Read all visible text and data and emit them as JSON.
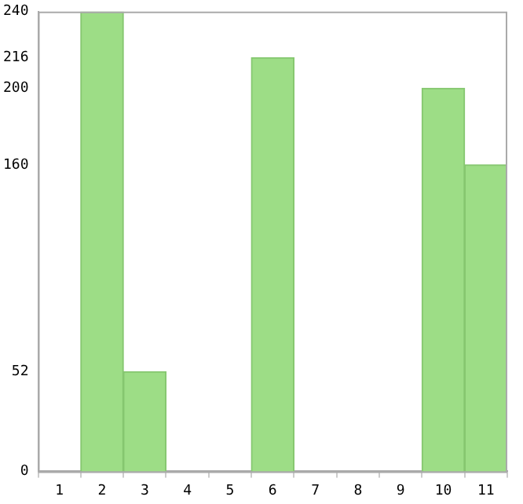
{
  "chart_data": {
    "type": "bar",
    "categories": [
      "1",
      "2",
      "3",
      "4",
      "5",
      "6",
      "7",
      "8",
      "9",
      "10",
      "11"
    ],
    "values": [
      0,
      240,
      52,
      0,
      0,
      216,
      0,
      0,
      0,
      200,
      160
    ],
    "color": "#9ddd86",
    "ylim": [
      0,
      240
    ],
    "yticks": [
      0,
      52,
      160,
      200,
      216,
      240
    ],
    "grid": false,
    "legend": false
  }
}
